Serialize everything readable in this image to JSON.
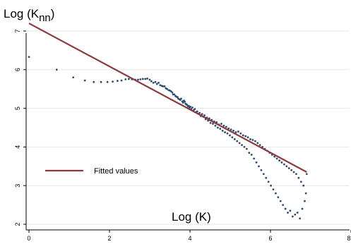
{
  "chart_data": {
    "type": "scatter",
    "title": "",
    "ylabel": "Log (K",
    "ylabel_sub": "nn",
    "ylabel_close": ")",
    "xlabel": "Log (K)",
    "xlim": [
      0,
      8
    ],
    "ylim": [
      1.9,
      7.2
    ],
    "x_ticks": [
      0,
      2,
      4,
      6,
      8
    ],
    "y_ticks": [
      2,
      3,
      4,
      5,
      6,
      7
    ],
    "grid": true,
    "legend": {
      "placement": "left-middle",
      "entries": [
        {
          "label": "Fitted values",
          "color": "#8b3a3f",
          "marker": "line"
        }
      ]
    },
    "colors": {
      "points": "#2f4b6f",
      "fit": "#8b3a3f",
      "grid": "#e6e6e6"
    },
    "fitted_line": {
      "x": [
        0,
        6.9
      ],
      "y": [
        7.2,
        3.35
      ]
    },
    "series": [
      {
        "type": "scatter",
        "points": [
          [
            0.0,
            6.33
          ],
          [
            0.69,
            6.0
          ],
          [
            1.1,
            5.8
          ],
          [
            1.39,
            5.72
          ],
          [
            1.61,
            5.68
          ],
          [
            1.79,
            5.68
          ],
          [
            1.95,
            5.68
          ],
          [
            2.08,
            5.69
          ],
          [
            2.2,
            5.71
          ],
          [
            2.3,
            5.72
          ],
          [
            2.4,
            5.75
          ],
          [
            2.48,
            5.76
          ],
          [
            2.56,
            5.75
          ],
          [
            2.64,
            5.74
          ],
          [
            2.71,
            5.74
          ],
          [
            2.77,
            5.75
          ],
          [
            2.83,
            5.76
          ],
          [
            2.89,
            5.76
          ],
          [
            2.94,
            5.77
          ],
          [
            3.0,
            5.74
          ],
          [
            3.04,
            5.7
          ],
          [
            3.09,
            5.66
          ],
          [
            3.14,
            5.68
          ],
          [
            3.18,
            5.63
          ],
          [
            3.22,
            5.66
          ],
          [
            3.26,
            5.6
          ],
          [
            3.3,
            5.58
          ],
          [
            3.33,
            5.57
          ],
          [
            3.37,
            5.57
          ],
          [
            3.4,
            5.52
          ],
          [
            3.43,
            5.5
          ],
          [
            3.47,
            5.47
          ],
          [
            3.5,
            5.46
          ],
          [
            3.53,
            5.44
          ],
          [
            3.56,
            5.41
          ],
          [
            3.58,
            5.36
          ],
          [
            3.61,
            5.36
          ],
          [
            3.64,
            5.32
          ],
          [
            3.66,
            5.3
          ],
          [
            3.69,
            5.29
          ],
          [
            3.71,
            5.25
          ],
          [
            3.74,
            5.23
          ],
          [
            3.76,
            5.22
          ],
          [
            3.78,
            5.25
          ],
          [
            3.81,
            5.18
          ],
          [
            3.83,
            5.15
          ],
          [
            3.85,
            5.2
          ],
          [
            3.87,
            5.17
          ],
          [
            3.89,
            5.12
          ],
          [
            3.91,
            5.1
          ],
          [
            3.93,
            5.09
          ],
          [
            3.95,
            5.05
          ],
          [
            3.97,
            5.06
          ],
          [
            3.99,
            5.02
          ],
          [
            4.01,
            5.04
          ],
          [
            4.03,
            4.98
          ],
          [
            4.06,
            5.02
          ],
          [
            4.09,
            4.95
          ],
          [
            4.12,
            4.98
          ],
          [
            4.15,
            4.9
          ],
          [
            4.18,
            4.92
          ],
          [
            4.21,
            4.86
          ],
          [
            4.24,
            4.88
          ],
          [
            4.27,
            4.8
          ],
          [
            4.3,
            4.85
          ],
          [
            4.33,
            4.78
          ],
          [
            4.36,
            4.82
          ],
          [
            4.39,
            4.72
          ],
          [
            4.42,
            4.76
          ],
          [
            4.45,
            4.68
          ],
          [
            4.48,
            4.74
          ],
          [
            4.51,
            4.62
          ],
          [
            4.54,
            4.7
          ],
          [
            4.57,
            4.6
          ],
          [
            4.6,
            4.66
          ],
          [
            4.63,
            4.55
          ],
          [
            4.66,
            4.64
          ],
          [
            4.69,
            4.5
          ],
          [
            4.72,
            4.58
          ],
          [
            4.75,
            4.47
          ],
          [
            4.78,
            4.6
          ],
          [
            4.81,
            4.42
          ],
          [
            4.84,
            4.55
          ],
          [
            4.87,
            4.38
          ],
          [
            4.9,
            4.52
          ],
          [
            4.93,
            4.35
          ],
          [
            4.96,
            4.48
          ],
          [
            4.99,
            4.3
          ],
          [
            5.02,
            4.45
          ],
          [
            5.05,
            4.25
          ],
          [
            5.08,
            4.42
          ],
          [
            5.11,
            4.2
          ],
          [
            5.14,
            4.38
          ],
          [
            5.17,
            4.15
          ],
          [
            5.2,
            4.4
          ],
          [
            5.23,
            4.1
          ],
          [
            5.26,
            4.35
          ],
          [
            5.29,
            4.05
          ],
          [
            5.32,
            4.3
          ],
          [
            5.35,
            4.0
          ],
          [
            5.38,
            4.28
          ],
          [
            5.41,
            3.95
          ],
          [
            5.44,
            4.25
          ],
          [
            5.47,
            3.85
          ],
          [
            5.5,
            4.2
          ],
          [
            5.53,
            3.8
          ],
          [
            5.56,
            4.18
          ],
          [
            5.59,
            3.7
          ],
          [
            5.62,
            4.15
          ],
          [
            5.65,
            3.6
          ],
          [
            5.68,
            4.1
          ],
          [
            5.71,
            3.5
          ],
          [
            5.74,
            4.05
          ],
          [
            5.77,
            3.4
          ],
          [
            5.8,
            4.0
          ],
          [
            5.83,
            3.3
          ],
          [
            5.86,
            3.95
          ],
          [
            5.89,
            3.2
          ],
          [
            5.92,
            3.9
          ],
          [
            5.95,
            3.1
          ],
          [
            5.98,
            3.85
          ],
          [
            6.01,
            3.0
          ],
          [
            6.04,
            3.8
          ],
          [
            6.07,
            2.9
          ],
          [
            6.1,
            3.75
          ],
          [
            6.13,
            2.8
          ],
          [
            6.16,
            3.7
          ],
          [
            6.19,
            2.7
          ],
          [
            6.22,
            3.65
          ],
          [
            6.25,
            2.6
          ],
          [
            6.28,
            3.6
          ],
          [
            6.31,
            2.5
          ],
          [
            6.34,
            3.55
          ],
          [
            6.37,
            2.4
          ],
          [
            6.4,
            3.5
          ],
          [
            6.43,
            2.3
          ],
          [
            6.46,
            3.45
          ],
          [
            6.49,
            2.35
          ],
          [
            6.52,
            3.4
          ],
          [
            6.55,
            2.2
          ],
          [
            6.58,
            3.35
          ],
          [
            6.61,
            2.25
          ],
          [
            6.64,
            3.3
          ],
          [
            6.67,
            2.3
          ],
          [
            6.7,
            3.2
          ],
          [
            6.73,
            2.15
          ],
          [
            6.76,
            3.1
          ],
          [
            6.79,
            2.4
          ],
          [
            6.82,
            3.0
          ],
          [
            6.85,
            2.6
          ],
          [
            6.88,
            2.8
          ],
          [
            6.9,
            3.3
          ]
        ]
      }
    ]
  }
}
